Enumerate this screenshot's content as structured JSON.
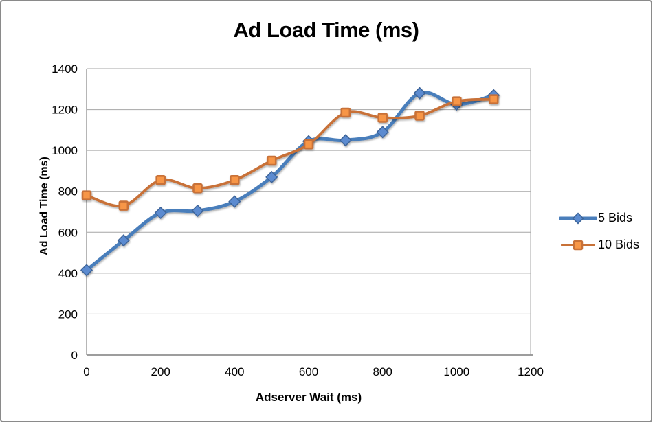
{
  "chart_data": {
    "type": "line",
    "title": "Ad Load Time (ms)",
    "xlabel": "Adserver Wait (ms)",
    "ylabel": "Ad Load Time (ms)",
    "x": [
      0,
      100,
      200,
      300,
      400,
      500,
      600,
      700,
      800,
      900,
      1000,
      1100
    ],
    "series": [
      {
        "name": "5 Bids",
        "marker": "diamond",
        "line_color": "#4A7EBB",
        "marker_fill": "#5B8BD0",
        "marker_stroke": "#3C6498",
        "values": [
          415,
          560,
          695,
          705,
          750,
          870,
          1045,
          1050,
          1090,
          1280,
          1225,
          1270
        ]
      },
      {
        "name": "10 Bids",
        "marker": "square",
        "line_color": "#C87137",
        "marker_fill": "#F79646",
        "marker_stroke": "#C87137",
        "values": [
          780,
          730,
          855,
          815,
          855,
          950,
          1030,
          1185,
          1160,
          1170,
          1240,
          1250
        ]
      }
    ],
    "xlim": [
      0,
      1200
    ],
    "ylim": [
      0,
      1400
    ],
    "x_ticks": [
      0,
      200,
      400,
      600,
      800,
      1000,
      1200
    ],
    "y_ticks": [
      0,
      200,
      400,
      600,
      800,
      1000,
      1200,
      1400
    ],
    "grid": "horizontal",
    "smoothed_lines": true,
    "legend_position": "right",
    "colors": {
      "gridline": "#A6A6A6",
      "axis": "#8F8F8F",
      "text": "#000000",
      "background": "#FFFFFF",
      "frame_border": "#8A8A8A"
    }
  }
}
